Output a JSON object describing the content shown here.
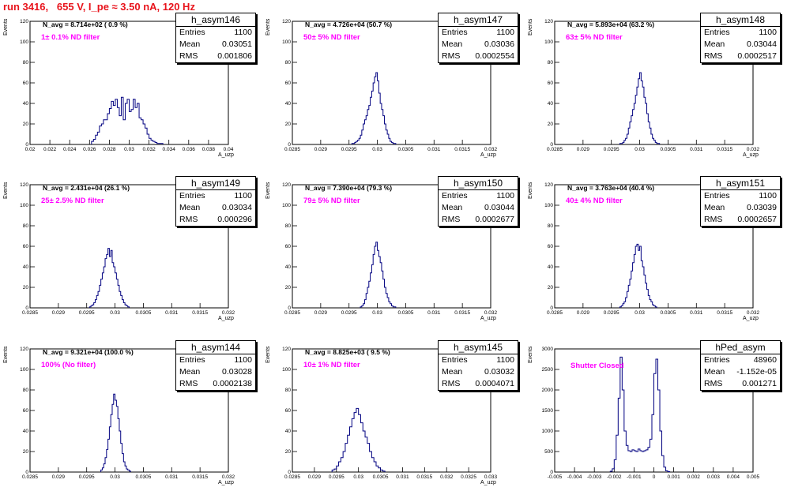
{
  "title": "run 3416,   655 V, I_pe ≈ 3.50 nA, 120 Hz",
  "colors": {
    "histogram": "#000080",
    "title": "#e8141c",
    "filter_label": "#ff00ff"
  },
  "chart_data": [
    {
      "type": "histogram",
      "name": "h_asym146",
      "entries": "1100",
      "mean": "0.03051",
      "rms": "0.001806",
      "n_avg": "N_avg = 8.714e+02 ( 0.9 %)",
      "filter_label": "1± 0.1% ND filter",
      "ylabel": "Events",
      "xlabel": "A_uzp",
      "xlim": [
        0.02,
        0.04
      ],
      "ylim": [
        0,
        120
      ],
      "yticks": [
        0,
        20,
        40,
        60,
        80,
        100,
        120
      ],
      "xticks": [
        "0.02",
        "0.022",
        "0.024",
        "0.026",
        "0.028",
        "0.03",
        "0.032",
        "0.034",
        "0.036",
        "0.038",
        "0.04"
      ],
      "bin_start": 0.0262,
      "bin_width": 0.0002,
      "values": [
        3,
        5,
        9,
        12,
        18,
        20,
        24,
        24,
        30,
        35,
        42,
        38,
        44,
        36,
        28,
        46,
        24,
        40,
        44,
        32,
        34,
        44,
        36,
        40,
        26,
        24,
        20,
        16,
        10,
        6,
        4,
        3,
        2,
        1,
        1,
        1
      ]
    },
    {
      "type": "histogram",
      "name": "h_asym147",
      "entries": "1100",
      "mean": "0.03036",
      "rms": "0.0002554",
      "n_avg": "N_avg = 4.726e+04 (50.7 %)",
      "filter_label": "50± 5% ND filter",
      "ylabel": "Events",
      "xlabel": "A_uzp",
      "xlim": [
        0.0285,
        0.032
      ],
      "ylim": [
        0,
        120
      ],
      "yticks": [
        0,
        20,
        40,
        60,
        80,
        100,
        120
      ],
      "xticks": [
        "0.0285",
        "0.029",
        "0.0295",
        "0.03",
        "0.0305",
        "0.031",
        "0.0315",
        "0.032"
      ],
      "bin_start": 0.02955,
      "bin_width": 2.5e-05,
      "values": [
        1,
        1,
        2,
        3,
        4,
        6,
        9,
        14,
        20,
        24,
        28,
        34,
        38,
        46,
        52,
        60,
        66,
        70,
        62,
        50,
        40,
        34,
        28,
        20,
        14,
        10,
        6,
        3,
        2,
        1,
        1
      ]
    },
    {
      "type": "histogram",
      "name": "h_asym148",
      "entries": "1100",
      "mean": "0.03044",
      "rms": "0.0002517",
      "n_avg": "N_avg = 5.893e+04 (63.2 %)",
      "filter_label": "63± 5% ND filter",
      "ylabel": "Events",
      "xlabel": "A_uzp",
      "xlim": [
        0.0285,
        0.032
      ],
      "ylim": [
        0,
        120
      ],
      "yticks": [
        0,
        20,
        40,
        60,
        80,
        100,
        120
      ],
      "xticks": [
        "0.0285",
        "0.029",
        "0.0295",
        "0.03",
        "0.0305",
        "0.031",
        "0.0315",
        "0.032"
      ],
      "bin_start": 0.02965,
      "bin_width": 2.5e-05,
      "values": [
        1,
        1,
        2,
        4,
        6,
        10,
        16,
        22,
        28,
        34,
        40,
        48,
        56,
        64,
        70,
        62,
        56,
        46,
        40,
        30,
        22,
        16,
        10,
        6,
        4,
        2,
        1,
        1
      ]
    },
    {
      "type": "histogram",
      "name": "h_asym149",
      "entries": "1100",
      "mean": "0.03034",
      "rms": "0.000296",
      "n_avg": "N_avg = 2.431e+04 (26.1 %)",
      "filter_label": "25± 2.5% ND filter",
      "ylabel": "Events",
      "xlabel": "A_uzp",
      "xlim": [
        0.0285,
        0.032
      ],
      "ylim": [
        0,
        120
      ],
      "yticks": [
        0,
        20,
        40,
        60,
        80,
        100,
        120
      ],
      "xticks": [
        "0.0285",
        "0.029",
        "0.0295",
        "0.03",
        "0.0305",
        "0.031",
        "0.0315",
        "0.032"
      ],
      "bin_start": 0.02955,
      "bin_width": 2.5e-05,
      "values": [
        1,
        2,
        3,
        5,
        8,
        12,
        16,
        22,
        28,
        34,
        40,
        48,
        52,
        58,
        50,
        56,
        44,
        40,
        34,
        28,
        22,
        16,
        12,
        8,
        5,
        3,
        2,
        1
      ]
    },
    {
      "type": "histogram",
      "name": "h_asym150",
      "entries": "1100",
      "mean": "0.03044",
      "rms": "0.0002677",
      "n_avg": "N_avg = 7.390e+04 (79.3 %)",
      "filter_label": "79± 5% ND filter",
      "ylabel": "Events",
      "xlabel": "A_uzp",
      "xlim": [
        0.0285,
        0.032
      ],
      "ylim": [
        0,
        120
      ],
      "yticks": [
        0,
        20,
        40,
        60,
        80,
        100,
        120
      ],
      "xticks": [
        "0.0285",
        "0.029",
        "0.0295",
        "0.03",
        "0.0305",
        "0.031",
        "0.0315",
        "0.032"
      ],
      "bin_start": 0.0297,
      "bin_width": 2.5e-05,
      "values": [
        1,
        2,
        4,
        8,
        14,
        20,
        26,
        34,
        42,
        52,
        60,
        64,
        56,
        50,
        44,
        36,
        28,
        20,
        14,
        10,
        6,
        4,
        2,
        1,
        1
      ]
    },
    {
      "type": "histogram",
      "name": "h_asym151",
      "entries": "1100",
      "mean": "0.03039",
      "rms": "0.0002657",
      "n_avg": "N_avg = 3.763e+04 (40.4 %)",
      "filter_label": "40± 4% ND filter",
      "ylabel": "Events",
      "xlabel": "A_uzp",
      "xlim": [
        0.0285,
        0.032
      ],
      "ylim": [
        0,
        120
      ],
      "yticks": [
        0,
        20,
        40,
        60,
        80,
        100,
        120
      ],
      "xticks": [
        "0.0285",
        "0.029",
        "0.0295",
        "0.03",
        "0.0305",
        "0.031",
        "0.0315",
        "0.032"
      ],
      "bin_start": 0.02965,
      "bin_width": 2.5e-05,
      "values": [
        1,
        2,
        4,
        6,
        10,
        16,
        22,
        28,
        36,
        44,
        52,
        60,
        62,
        56,
        60,
        46,
        40,
        32,
        24,
        18,
        12,
        8,
        6,
        3,
        2,
        1
      ]
    },
    {
      "type": "histogram",
      "name": "h_asym144",
      "entries": "1100",
      "mean": "0.03028",
      "rms": "0.0002138",
      "n_avg": "N_avg = 9.321e+04 (100.0 %)",
      "filter_label": "100% (No filter)",
      "ylabel": "Events",
      "xlabel": "A_uzp",
      "xlim": [
        0.0285,
        0.032
      ],
      "ylim": [
        0,
        120
      ],
      "yticks": [
        0,
        20,
        40,
        60,
        80,
        100,
        120
      ],
      "xticks": [
        "0.0285",
        "0.029",
        "0.0295",
        "0.03",
        "0.0305",
        "0.031",
        "0.0315",
        "0.032"
      ],
      "bin_start": 0.02975,
      "bin_width": 2.5e-05,
      "values": [
        2,
        4,
        8,
        14,
        22,
        32,
        44,
        56,
        66,
        76,
        70,
        64,
        52,
        40,
        28,
        18,
        10,
        6,
        3,
        2,
        1
      ]
    },
    {
      "type": "histogram",
      "name": "h_asym145",
      "entries": "1100",
      "mean": "0.03032",
      "rms": "0.0004071",
      "n_avg": "N_avg = 8.825e+03 ( 9.5 %)",
      "filter_label": "10± 1% ND filter",
      "ylabel": "Events",
      "xlabel": "A_uzp",
      "xlim": [
        0.0285,
        0.033
      ],
      "ylim": [
        0,
        120
      ],
      "yticks": [
        0,
        20,
        40,
        60,
        80,
        100,
        120
      ],
      "xticks": [
        "0.0285",
        "0.029",
        "0.0295",
        "0.03",
        "0.0305",
        "0.031",
        "0.0315",
        "0.032",
        "0.0325",
        "0.033"
      ],
      "bin_start": 0.0294,
      "bin_width": 5e-05,
      "values": [
        2,
        3,
        6,
        10,
        14,
        20,
        28,
        36,
        44,
        52,
        58,
        62,
        56,
        48,
        40,
        34,
        28,
        20,
        14,
        10,
        6,
        4,
        2,
        1
      ]
    },
    {
      "type": "histogram",
      "name": "hPed_asym",
      "entries": "48960",
      "mean": "-1.152e-05",
      "rms": "0.001271",
      "n_avg": "",
      "filter_label": "Shutter Closed",
      "ylabel": "Events",
      "xlabel": "",
      "xlim": [
        -0.005,
        0.005
      ],
      "ylim": [
        0,
        3000
      ],
      "yticks": [
        0,
        500,
        1000,
        1500,
        2000,
        2500,
        3000
      ],
      "xticks": [
        "-0.005",
        "-0.004",
        "-0.003",
        "-0.002",
        "-0.001",
        "0",
        "0.001",
        "0.002",
        "0.003",
        "0.004",
        "0.005"
      ],
      "bin_start": -0.0022,
      "bin_width": 0.0001,
      "values": [
        20,
        80,
        300,
        900,
        1800,
        2800,
        2000,
        1000,
        650,
        520,
        500,
        540,
        520,
        500,
        560,
        520,
        500,
        520,
        540,
        600,
        800,
        1400,
        2400,
        2750,
        2000,
        1000,
        400,
        120,
        30,
        10
      ]
    }
  ]
}
